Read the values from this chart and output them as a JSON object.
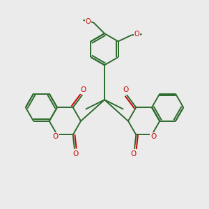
{
  "background_color": "#ebebeb",
  "bond_color": "#2d6b2d",
  "heteroatom_color": "#cc0000",
  "bond_width": 1.4,
  "figsize": [
    3.0,
    3.0
  ],
  "dpi": 100,
  "xlim": [
    -6.5,
    6.5
  ],
  "ylim": [
    -5.5,
    5.5
  ]
}
